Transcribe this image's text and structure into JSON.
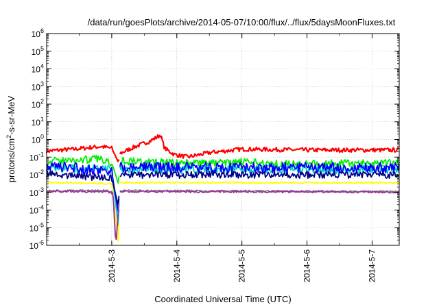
{
  "chart_data": {
    "type": "line",
    "title": "/data/run/goesPlots/archive/2014-05-07/10:00/flux/../flux/5daysMoonFluxes.txt",
    "xlabel": "Coordinated Universal Time (UTC)",
    "ylabel_base": "protons/cm",
    "ylabel_sup": "2",
    "ylabel_rest": "-s-sr-MeV",
    "y_scale": "log",
    "ylim_exp": [
      -6,
      6
    ],
    "y_ticks": [
      {
        "base": "10",
        "exp": "-6"
      },
      {
        "base": "10",
        "exp": "-5"
      },
      {
        "base": "10",
        "exp": "-4"
      },
      {
        "base": "10",
        "exp": "-3"
      },
      {
        "base": "10",
        "exp": "-2"
      },
      {
        "base": "10",
        "exp": "-1"
      },
      {
        "base": "10",
        "exp": "0"
      },
      {
        "base": "10",
        "exp": "1"
      },
      {
        "base": "10",
        "exp": "2"
      },
      {
        "base": "10",
        "exp": "3"
      },
      {
        "base": "10",
        "exp": "4"
      },
      {
        "base": "10",
        "exp": "5"
      },
      {
        "base": "10",
        "exp": "6"
      }
    ],
    "x_range_days": [
      "2014-05-02T00:00",
      "2014-05-07T10:00"
    ],
    "x_ticks": [
      {
        "label": "2014-5-3",
        "value": "2014-05-03T00:00"
      },
      {
        "label": "2014-5-4",
        "value": "2014-05-04T00:00"
      },
      {
        "label": "2014-5-5",
        "value": "2014-05-05T00:00"
      },
      {
        "label": "2014-5-6",
        "value": "2014-05-06T00:00"
      },
      {
        "label": "2014-5-7",
        "value": "2014-05-07T00:00"
      }
    ],
    "grid": true,
    "legend": "none",
    "series": [
      {
        "color": "#ff0000",
        "base_log": -0.65,
        "noise": 0.12,
        "anchors": [
          [
            "2014-05-02T00:00",
            -0.65
          ],
          [
            "2014-05-02T10:00",
            -0.55
          ],
          [
            "2014-05-02T20:00",
            -0.4
          ],
          [
            "2014-05-03T00:00",
            -0.5
          ],
          [
            "2014-05-03T02:30",
            -1.3
          ],
          [
            "2014-05-03T03:00",
            -0.8
          ],
          [
            "2014-05-03T08:00",
            -0.45
          ],
          [
            "2014-05-03T14:00",
            -0.1
          ],
          [
            "2014-05-03T18:00",
            0.25
          ],
          [
            "2014-05-03T19:30",
            -0.5
          ],
          [
            "2014-05-03T23:00",
            -0.85
          ],
          [
            "2014-05-04T04:00",
            -1.0
          ],
          [
            "2014-05-04T12:00",
            -0.75
          ],
          [
            "2014-05-05T00:00",
            -0.55
          ],
          [
            "2014-05-06T00:00",
            -0.6
          ],
          [
            "2014-05-07T10:00",
            -0.6
          ]
        ]
      },
      {
        "color": "#00ee00",
        "base_log": -1.35,
        "noise": 0.22,
        "anchors": [
          [
            "2014-05-02T00:00",
            -1.25
          ],
          [
            "2014-05-02T20:00",
            -1.1
          ],
          [
            "2014-05-03T00:00",
            -1.3
          ],
          [
            "2014-05-03T02:30",
            -2.55
          ],
          [
            "2014-05-03T03:00",
            -1.2
          ],
          [
            "2014-05-04T00:00",
            -1.35
          ],
          [
            "2014-05-05T00:00",
            -1.3
          ],
          [
            "2014-05-06T00:00",
            -1.4
          ],
          [
            "2014-05-07T10:00",
            -1.3
          ]
        ]
      },
      {
        "color": "#00cccc",
        "base_log": -1.7,
        "noise": 0.25,
        "anchors": [
          [
            "2014-05-02T00:00",
            -1.6
          ],
          [
            "2014-05-03T00:00",
            -1.7
          ],
          [
            "2014-05-03T02:30",
            -5.1
          ],
          [
            "2014-05-03T03:00",
            -1.7
          ],
          [
            "2014-05-05T00:00",
            -1.7
          ],
          [
            "2014-05-07T10:00",
            -1.7
          ]
        ]
      },
      {
        "color": "#0000ff",
        "base_log": -1.6,
        "noise": 0.3,
        "anchors": [
          [
            "2014-05-02T00:00",
            -1.5
          ],
          [
            "2014-05-03T00:00",
            -1.8
          ],
          [
            "2014-05-03T02:30",
            -4.25
          ],
          [
            "2014-05-03T03:00",
            -1.55
          ],
          [
            "2014-05-05T00:00",
            -1.6
          ],
          [
            "2014-05-07T10:00",
            -1.6
          ]
        ]
      },
      {
        "color": "#000088",
        "base_log": -2.0,
        "noise": 0.2,
        "anchors": [
          [
            "2014-05-02T00:00",
            -1.95
          ],
          [
            "2014-05-03T00:00",
            -2.2
          ],
          [
            "2014-05-03T02:30",
            -3.8
          ],
          [
            "2014-05-03T03:00",
            -2.0
          ],
          [
            "2014-05-05T00:00",
            -2.0
          ],
          [
            "2014-05-07T10:00",
            -2.0
          ]
        ]
      },
      {
        "color": "#ffff00",
        "base_log": -2.45,
        "noise": 0.05,
        "anchors": [
          [
            "2014-05-02T00:00",
            -2.45
          ],
          [
            "2014-05-03T00:00",
            -2.5
          ],
          [
            "2014-05-03T02:30",
            -6.0
          ],
          [
            "2014-05-03T03:00",
            -2.45
          ],
          [
            "2014-05-07T10:00",
            -2.45
          ]
        ]
      },
      {
        "color": "#808080",
        "base_log": -2.95,
        "noise": 0.05,
        "anchors": [
          [
            "2014-05-02T00:00",
            -2.9
          ],
          [
            "2014-05-02T22:00",
            -2.9
          ],
          [
            "2014-05-03T00:30",
            -3.0
          ],
          [
            "2014-05-03T01:30",
            -6.0
          ],
          [
            "2014-05-03T03:00",
            -2.9
          ],
          [
            "2014-05-07T10:00",
            -2.95
          ]
        ]
      },
      {
        "color": "#993399",
        "base_log": -2.95,
        "noise": 0.06,
        "anchors": [
          [
            "2014-05-02T00:00",
            -2.95
          ],
          [
            "2014-05-02T22:00",
            -2.95
          ],
          [
            "2014-05-03T00:30",
            -3.05
          ],
          [
            "2014-05-03T01:30",
            -6.0
          ],
          [
            "2014-05-03T03:00",
            -2.95
          ],
          [
            "2014-05-07T10:00",
            -2.98
          ]
        ]
      }
    ]
  }
}
